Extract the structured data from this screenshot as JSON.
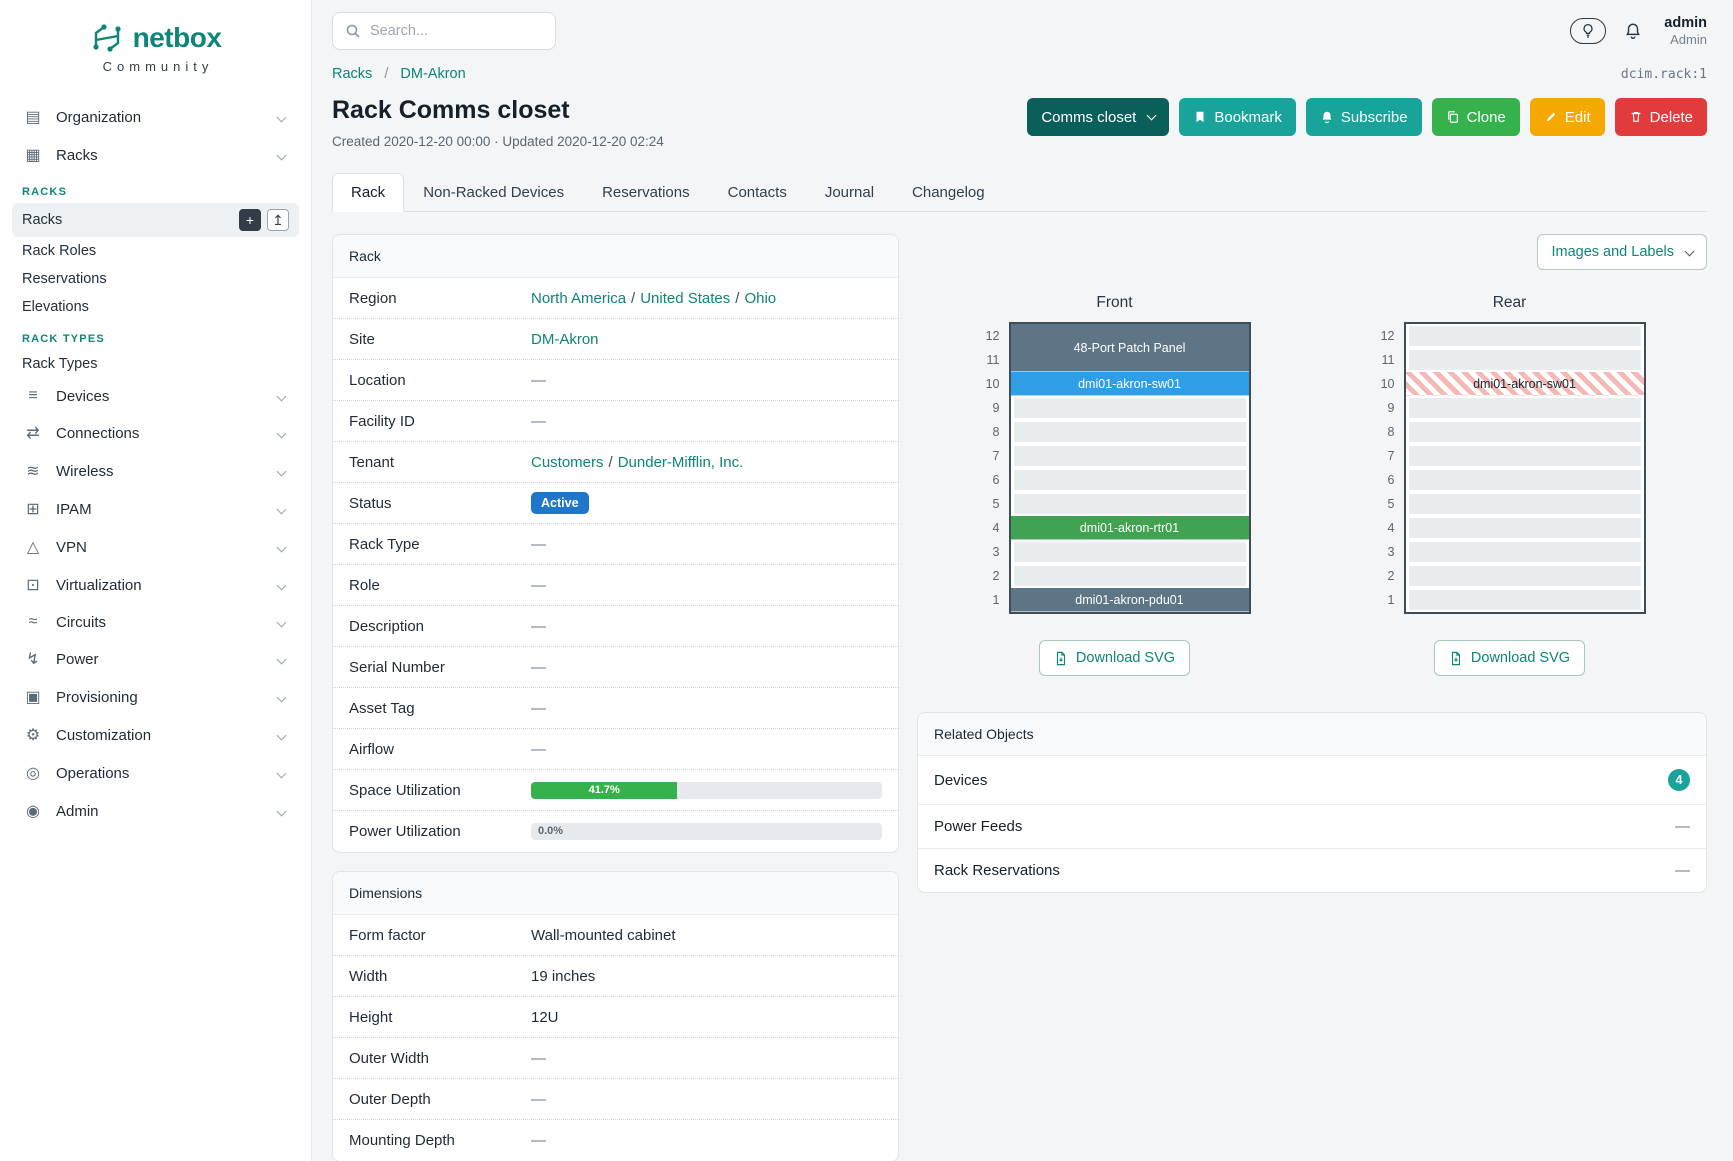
{
  "colors": {
    "teal": "#18a39b",
    "teal-dark": "#0b5f5b",
    "link": "#0d8577",
    "green": "#35b24b",
    "orange": "#f5a800",
    "red": "#e23b3b",
    "blue-badge": "#2076c8",
    "stripe-pink": "#f3b9b4"
  },
  "brand": {
    "name": "netbox",
    "community": "Community"
  },
  "topbar": {
    "search_placeholder": "Search...",
    "user": {
      "name": "admin",
      "role": "Admin"
    }
  },
  "sidebar": {
    "add_button_glyph": "+",
    "import_button_glyph": "↥",
    "items": [
      {
        "type": "top",
        "label": "Organization",
        "icon": "building-icon",
        "glyph": "▤"
      },
      {
        "type": "top",
        "label": "Racks",
        "icon": "rack-icon",
        "glyph": "▦",
        "expanded": true
      },
      {
        "type": "heading",
        "label": "RACKS"
      },
      {
        "type": "sub",
        "label": "Racks",
        "active": true
      },
      {
        "type": "sub",
        "label": "Rack Roles"
      },
      {
        "type": "sub",
        "label": "Reservations"
      },
      {
        "type": "sub",
        "label": "Elevations"
      },
      {
        "type": "heading",
        "label": "RACK TYPES"
      },
      {
        "type": "sub",
        "label": "Rack Types"
      },
      {
        "type": "top",
        "label": "Devices",
        "icon": "devices-icon",
        "glyph": "≡"
      },
      {
        "type": "top",
        "label": "Connections",
        "icon": "connections-icon",
        "glyph": "⇄"
      },
      {
        "type": "top",
        "label": "Wireless",
        "icon": "wireless-icon",
        "glyph": "≋"
      },
      {
        "type": "top",
        "label": "IPAM",
        "icon": "ipam-icon",
        "glyph": "⊞"
      },
      {
        "type": "top",
        "label": "VPN",
        "icon": "vpn-icon",
        "glyph": "△"
      },
      {
        "type": "top",
        "label": "Virtualization",
        "icon": "virtualization-icon",
        "glyph": "⊡"
      },
      {
        "type": "top",
        "label": "Circuits",
        "icon": "circuits-icon",
        "glyph": "≈"
      },
      {
        "type": "top",
        "label": "Power",
        "icon": "power-icon",
        "glyph": "↯"
      },
      {
        "type": "top",
        "label": "Provisioning",
        "icon": "provisioning-icon",
        "glyph": "▣"
      },
      {
        "type": "top",
        "label": "Customization",
        "icon": "customization-icon",
        "glyph": "⚙"
      },
      {
        "type": "top",
        "label": "Operations",
        "icon": "operations-icon",
        "glyph": "◎"
      },
      {
        "type": "top",
        "label": "Admin",
        "icon": "admin-icon",
        "glyph": "◉"
      }
    ]
  },
  "breadcrumb": {
    "items": [
      "Racks",
      "DM-Akron"
    ],
    "object_id": "dcim.rack:1"
  },
  "page": {
    "title": "Rack Comms closet",
    "meta": "Created 2020-12-20 00:00 · Updated 2020-12-20 02:24"
  },
  "actions": {
    "view_select_label": "Comms closet",
    "bookmark_label": "Bookmark",
    "subscribe_label": "Subscribe",
    "clone_label": "Clone",
    "edit_label": "Edit",
    "delete_label": "Delete"
  },
  "tabs": {
    "active_index": 0,
    "items": [
      "Rack",
      "Non-Racked Devices",
      "Reservations",
      "Contacts",
      "Journal",
      "Changelog"
    ]
  },
  "rack_card": {
    "title": "Rack",
    "region": {
      "label": "Region",
      "links": [
        "North America",
        "United States",
        "Ohio"
      ]
    },
    "site": {
      "label": "Site",
      "link": "DM-Akron"
    },
    "location": {
      "label": "Location",
      "value": "—"
    },
    "facility_id": {
      "label": "Facility ID",
      "value": "—"
    },
    "tenant": {
      "label": "Tenant",
      "links": [
        "Customers",
        "Dunder-Mifflin, Inc."
      ]
    },
    "status": {
      "label": "Status",
      "badge": "Active"
    },
    "rack_type": {
      "label": "Rack Type",
      "value": "—"
    },
    "role": {
      "label": "Role",
      "value": "—"
    },
    "description": {
      "label": "Description",
      "value": "—"
    },
    "serial_number": {
      "label": "Serial Number",
      "value": "—"
    },
    "asset_tag": {
      "label": "Asset Tag",
      "value": "—"
    },
    "airflow": {
      "label": "Airflow",
      "value": "—"
    },
    "space_utilization": {
      "label": "Space Utilization",
      "percent": "41.7%"
    },
    "power_utilization": {
      "label": "Power Utilization",
      "percent": "0.0%"
    }
  },
  "dimensions": {
    "title": "Dimensions",
    "rows": [
      {
        "label": "Form factor",
        "value": "Wall-mounted cabinet"
      },
      {
        "label": "Width",
        "value": "19 inches"
      },
      {
        "label": "Height",
        "value": "12U"
      },
      {
        "label": "Outer Width",
        "value": "—"
      },
      {
        "label": "Outer Depth",
        "value": "—"
      },
      {
        "label": "Mounting Depth",
        "value": "—"
      }
    ]
  },
  "elevations": {
    "view_options_label": "Images and Labels",
    "download_label": "Download SVG",
    "front": {
      "title": "Front",
      "units": 12,
      "devices": [
        {
          "name": "48-Port Patch Panel",
          "top_unit": 12,
          "height": 2,
          "color": "#5d7584"
        },
        {
          "name": "dmi01-akron-sw01",
          "top_unit": 10,
          "height": 1,
          "color": "#2e9fe6"
        },
        {
          "name": "dmi01-akron-rtr01",
          "top_unit": 4,
          "height": 1,
          "color": "#41a351"
        },
        {
          "name": "dmi01-akron-pdu01",
          "top_unit": 1,
          "height": 1,
          "color": "#5d7584"
        }
      ]
    },
    "rear": {
      "title": "Rear",
      "units": 12,
      "devices": [
        {
          "name": "dmi01-akron-sw01",
          "top_unit": 10,
          "height": 1,
          "striped": true
        }
      ]
    }
  },
  "related": {
    "title": "Related Objects",
    "rows": [
      {
        "label": "Devices",
        "count": "4"
      },
      {
        "label": "Power Feeds",
        "value": "—"
      },
      {
        "label": "Rack Reservations",
        "value": "—"
      }
    ]
  }
}
